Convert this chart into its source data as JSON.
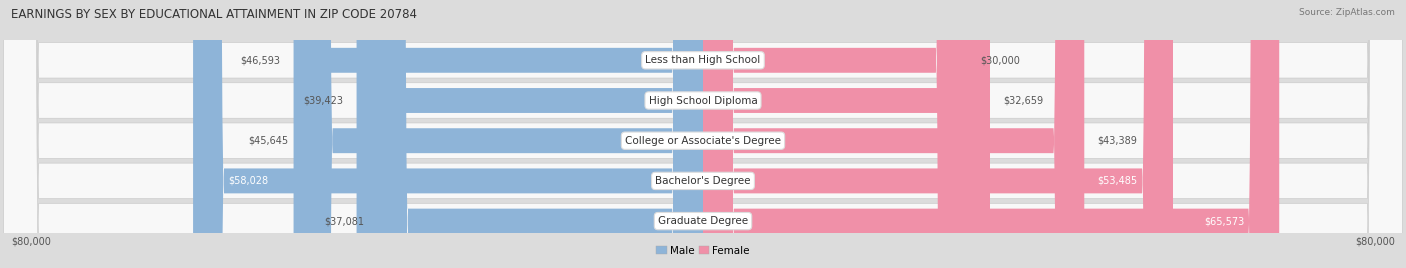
{
  "title": "EARNINGS BY SEX BY EDUCATIONAL ATTAINMENT IN ZIP CODE 20784",
  "source": "Source: ZipAtlas.com",
  "categories": [
    "Less than High School",
    "High School Diploma",
    "College or Associate's Degree",
    "Bachelor's Degree",
    "Graduate Degree"
  ],
  "male_values": [
    46593,
    39423,
    45645,
    58028,
    37081
  ],
  "female_values": [
    30000,
    32659,
    43389,
    53485,
    65573
  ],
  "male_color": "#8eb4d8",
  "female_color": "#f090a8",
  "max_value": 80000,
  "background_color": "#dcdcdc",
  "row_color": "#f8f8f8",
  "row_border": "#cccccc",
  "title_fontsize": 8.5,
  "source_fontsize": 6.5,
  "label_fontsize": 7.5,
  "value_fontsize": 7.0,
  "value_inside_color_male": "white",
  "value_inside_color_female": "white",
  "value_outside_color": "#555555"
}
